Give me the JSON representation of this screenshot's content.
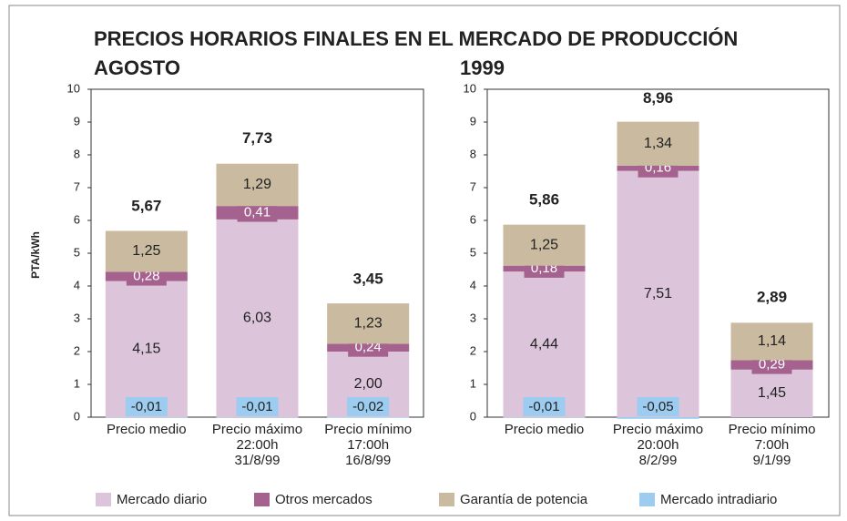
{
  "chart_data": {
    "type": "bar",
    "stacked": true,
    "title": "PRECIOS HORARIOS FINALES EN EL MERCADO DE PRODUCCIÓN",
    "y_label": "PTA/kWh",
    "ylim": [
      0,
      10
    ],
    "yticks": [
      0,
      1,
      2,
      3,
      4,
      5,
      6,
      7,
      8,
      9,
      10
    ],
    "series_info": [
      {
        "name": "Mercado diario",
        "color": "#dcc5da"
      },
      {
        "name": "Otros mercados",
        "color": "#a6628f"
      },
      {
        "name": "Garantía de potencia",
        "color": "#c9baa0"
      },
      {
        "name": "Mercado intradiario",
        "color": "#9ccdf0"
      }
    ],
    "panels": [
      {
        "subtitle": "AGOSTO",
        "categories": [
          [
            "Precio medio"
          ],
          [
            "Precio máximo",
            "22:00h",
            "31/8/99"
          ],
          [
            "Precio mínimo",
            "17:00h",
            "16/8/99"
          ]
        ],
        "series": [
          {
            "values": [
              4.15,
              6.03,
              2.0
            ],
            "value_labels": [
              "4,15",
              "6,03",
              "2,00"
            ]
          },
          {
            "values": [
              0.28,
              0.41,
              0.24
            ],
            "value_labels": [
              "0,28",
              "0,41",
              "0,24"
            ]
          },
          {
            "values": [
              1.25,
              1.29,
              1.23
            ],
            "value_labels": [
              "1,25",
              "1,29",
              "1,23"
            ]
          },
          {
            "values": [
              -0.01,
              -0.01,
              -0.02
            ],
            "value_labels": [
              "-0,01",
              "-0,01",
              "-0,02"
            ]
          }
        ],
        "totals": [
          5.67,
          7.73,
          3.45
        ],
        "total_labels": [
          "5,67",
          "7,73",
          "3,45"
        ]
      },
      {
        "subtitle": "1999",
        "categories": [
          [
            "Precio medio"
          ],
          [
            "Precio máximo",
            "20:00h",
            "8/2/99"
          ],
          [
            "Precio mínimo",
            "7:00h",
            "9/1/99"
          ]
        ],
        "series": [
          {
            "values": [
              4.44,
              7.51,
              1.45
            ],
            "value_labels": [
              "4,44",
              "7,51",
              "1,45"
            ]
          },
          {
            "values": [
              0.18,
              0.16,
              0.29
            ],
            "value_labels": [
              "0,18",
              "0,16",
              "0,29"
            ]
          },
          {
            "values": [
              1.25,
              1.34,
              1.14
            ],
            "value_labels": [
              "1,25",
              "1,34",
              "1,14"
            ]
          },
          {
            "values": [
              -0.01,
              -0.05,
              null
            ],
            "value_labels": [
              "-0,01",
              "-0,05",
              null
            ]
          }
        ],
        "totals": [
          5.86,
          8.96,
          2.89
        ],
        "total_labels": [
          "5,86",
          "8,96",
          "2,89"
        ]
      }
    ]
  }
}
